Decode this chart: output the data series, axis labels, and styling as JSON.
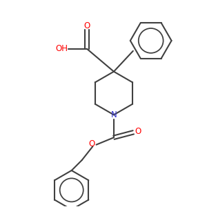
{
  "background_color": "#ffffff",
  "bond_color": "#404040",
  "oxygen_color": "#ff0000",
  "nitrogen_color": "#3333cc",
  "line_width": 1.5,
  "figsize": [
    3.0,
    3.0
  ],
  "dpi": 100,
  "xlim": [
    0,
    10
  ],
  "ylim": [
    0,
    10
  ]
}
